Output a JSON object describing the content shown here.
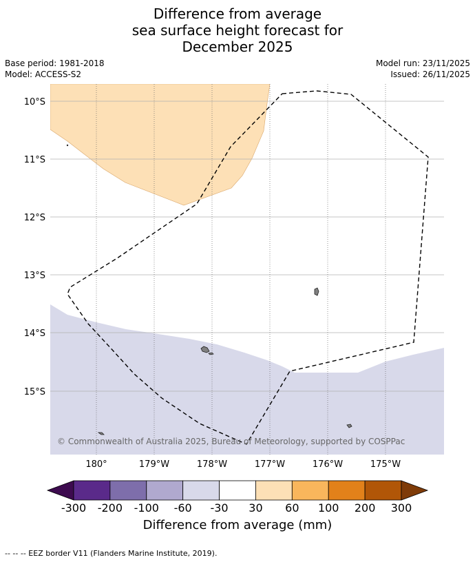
{
  "title": {
    "line1": "Difference from average",
    "line2": "sea surface height forecast for",
    "line3": "December 2025"
  },
  "meta": {
    "base_period": "Base period: 1981-2018",
    "model": "Model: ACCESS-S2",
    "model_run": "Model run: 23/11/2025",
    "issued": "Issued: 26/11/2025"
  },
  "map": {
    "lat_labels": [
      "10°S",
      "11°S",
      "12°S",
      "13°S",
      "14°S",
      "15°S"
    ],
    "lon_labels": [
      "180°",
      "179°W",
      "178°W",
      "177°W",
      "176°W",
      "175°W"
    ],
    "copyright": "© Commonwealth of Australia 2025, Bureau of Meteorology, supported by COSPPac",
    "colors": {
      "positive_30_60": "#fde0b6",
      "negative_60_30": "#d8d9ea",
      "land": "#808080",
      "eez": "#000000",
      "grid": "#aaaaaa"
    }
  },
  "colorbar": {
    "ticks": [
      "-300",
      "-200",
      "-100",
      "-60",
      "-30",
      "30",
      "60",
      "100",
      "200",
      "300"
    ],
    "colors": [
      "#3d0b4f",
      "#5a2a8a",
      "#7e6eab",
      "#b0a9cf",
      "#d8d9ea",
      "#ffffff",
      "#fde0b6",
      "#f9b65c",
      "#e2811a",
      "#b15607",
      "#7f3b08"
    ],
    "label": "Difference from average (mm)"
  },
  "footnote": "--  --  -- EEZ border V11 (Flanders Marine Institute, 2019)."
}
